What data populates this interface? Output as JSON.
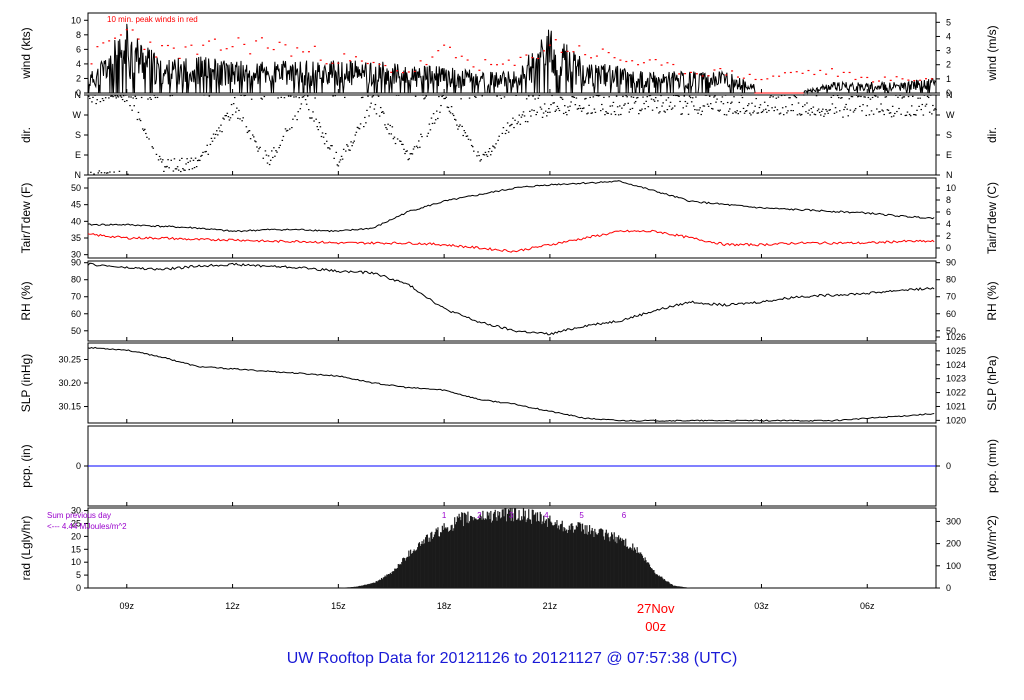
{
  "title": "UW Rooftop Data for 20121126  to  20121127 @ 07:57:38  (UTC)",
  "colors": {
    "frame": "#000000",
    "series": "#000000",
    "dewpoint": "#ff0000",
    "peak": "#ff0000",
    "precip": "#0000ff",
    "title": "#1a1ad6",
    "sum_note": "#9900cc",
    "date_label": "#ff0000"
  },
  "x_axis": {
    "tick_labels": [
      "09z",
      "12z",
      "15z",
      "18z",
      "21z",
      "03z",
      "06z"
    ],
    "tick_hours": [
      9,
      12,
      15,
      18,
      21,
      27,
      30
    ],
    "date_label": "27Nov",
    "date_sub_label": "00z",
    "date_hour": 24,
    "range_hours": [
      7.9,
      31.95
    ]
  },
  "panels": {
    "wind": {
      "left_label": "wind (kts)",
      "right_label": "wind (m/s)",
      "left_ticks": [
        "10",
        "8",
        "6",
        "4",
        "2",
        "0"
      ],
      "right_ticks": [
        "5",
        "4",
        "3",
        "2",
        "1",
        "0"
      ],
      "note": "10 min. peak winds in red"
    },
    "dir": {
      "left_label": "dir.",
      "right_label": "dir.",
      "ticks": [
        "N",
        "W",
        "S",
        "E",
        "N"
      ]
    },
    "temp": {
      "left_label": "Tair/Tdew (F)",
      "right_label": "Tair/Tdew (C)",
      "left_ticks": [
        "50",
        "45",
        "40",
        "35",
        "30"
      ],
      "right_ticks": [
        "10",
        "8",
        "6",
        "4",
        "2",
        "0"
      ]
    },
    "rh": {
      "left_label": "RH (%)",
      "right_label": "RH (%)",
      "ticks": [
        "90",
        "80",
        "70",
        "60",
        "50"
      ]
    },
    "slp": {
      "left_label": "SLP (inHg)",
      "right_label": "SLP (hPa)",
      "left_ticks": [
        "30.25",
        "30.20",
        "30.15"
      ],
      "right_ticks": [
        "1026",
        "1025",
        "1024",
        "1023",
        "1022",
        "1021",
        "1020"
      ]
    },
    "pcp": {
      "left_label": "pcp. (in)",
      "right_label": "pcp. (mm)",
      "left_ticks": [
        "0"
      ],
      "right_ticks": [
        "0"
      ]
    },
    "rad": {
      "left_label": "rad (Lgly/hr)",
      "right_label": "rad (W/m^2)",
      "left_ticks": [
        "30",
        "25",
        "20",
        "15",
        "10",
        "5",
        "0"
      ],
      "right_ticks": [
        "300",
        "200",
        "100",
        "0"
      ],
      "sum_line1": "Sum previous day",
      "sum_line2": "<--- 4.44 MJoules/m^2",
      "hour_marks": [
        "1",
        "2",
        "3",
        "4",
        "5",
        "6"
      ]
    }
  },
  "chart_data": [
    {
      "type": "line",
      "panel": "wind",
      "ylabel": "wind (kts)",
      "ylim": [
        0,
        11
      ],
      "x": [
        8,
        9,
        10,
        11,
        12,
        13,
        14,
        15,
        16,
        17,
        18,
        19,
        20,
        21,
        22,
        23,
        24,
        25,
        26,
        27,
        28,
        29,
        30,
        31,
        31.9
      ],
      "series": [
        {
          "values": [
            2,
            6.5,
            3,
            3.5,
            3,
            3,
            3,
            3,
            3,
            2.5,
            2.5,
            2,
            2,
            6,
            3,
            2.5,
            2,
            2,
            2,
            0.5,
            0,
            1,
            1,
            1,
            1.5
          ]
        },
        {
          "values": [
            5,
            9,
            6,
            6,
            7,
            7,
            6,
            5,
            4,
            3,
            6,
            4,
            4,
            7,
            6,
            5,
            4,
            3,
            3,
            2,
            3,
            3,
            2,
            2,
            2
          ]
        }
      ]
    },
    {
      "type": "scatter",
      "panel": "dir",
      "ylabel": "dir.",
      "ticks": [
        "N",
        "W",
        "S",
        "E",
        "N"
      ],
      "x": [
        8,
        9,
        10,
        11,
        12,
        13,
        14,
        15,
        16,
        17,
        18,
        19,
        20,
        21,
        22,
        23,
        24,
        25,
        26,
        27,
        28,
        29,
        30,
        31,
        31.9
      ],
      "series": [
        {
          "values": [
            350,
            350,
            40,
            50,
            300,
            60,
            330,
            60,
            320,
            70,
            330,
            60,
            250,
            300,
            300,
            300,
            310,
            300,
            300,
            300,
            300,
            290,
            290,
            290,
            300
          ]
        }
      ]
    },
    {
      "type": "line",
      "panel": "temp",
      "ylabel": "Tair/Tdew (F)",
      "ylim": [
        29,
        53
      ],
      "x": [
        8,
        9,
        10,
        11,
        12,
        13,
        14,
        15,
        16,
        17,
        18,
        19,
        20,
        21,
        22,
        23,
        24,
        25,
        26,
        27,
        28,
        29,
        30,
        31,
        31.9
      ],
      "series": [
        {
          "values": [
            39,
            39,
            38.5,
            38,
            37,
            37.5,
            37.5,
            37,
            38,
            43,
            46,
            48,
            50,
            51,
            51.5,
            52,
            49,
            46,
            45,
            44,
            43.5,
            43,
            42.5,
            41.5,
            41
          ]
        },
        {
          "values": [
            36,
            35,
            35,
            34.5,
            34.5,
            34,
            34,
            33.5,
            33.5,
            33.5,
            33,
            32,
            31,
            33,
            35,
            37,
            37,
            35,
            33,
            33,
            33.5,
            33.5,
            33.5,
            34,
            34
          ]
        }
      ]
    },
    {
      "type": "line",
      "panel": "rh",
      "ylabel": "RH (%)",
      "ylim": [
        44,
        91
      ],
      "x": [
        8,
        9,
        10,
        11,
        12,
        13,
        14,
        15,
        16,
        17,
        18,
        19,
        20,
        21,
        22,
        23,
        24,
        25,
        26,
        27,
        28,
        29,
        30,
        31,
        31.9
      ],
      "series": [
        {
          "values": [
            89,
            87,
            86,
            88,
            89,
            88,
            87,
            85,
            84,
            77,
            63,
            55,
            50,
            48,
            53,
            56,
            62,
            67,
            65,
            67,
            70,
            71,
            72,
            74,
            75
          ]
        }
      ]
    },
    {
      "type": "line",
      "panel": "slp",
      "ylabel": "SLP (inHg)",
      "ylim": [
        30.115,
        30.285
      ],
      "x": [
        8,
        9,
        10,
        11,
        12,
        13,
        14,
        15,
        16,
        17,
        18,
        19,
        20,
        21,
        22,
        23,
        24,
        25,
        26,
        27,
        28,
        29,
        30,
        31,
        31.9
      ],
      "series": [
        {
          "values": [
            30.275,
            30.27,
            30.255,
            30.235,
            30.23,
            30.225,
            30.22,
            30.215,
            30.2,
            30.19,
            30.185,
            30.165,
            30.155,
            30.14,
            30.125,
            30.12,
            30.12,
            30.12,
            30.12,
            30.12,
            30.12,
            30.12,
            30.125,
            30.13,
            30.135
          ]
        }
      ]
    },
    {
      "type": "line",
      "panel": "pcp",
      "ylabel": "pcp. (in)",
      "ylim": [
        -1,
        1
      ],
      "x": [
        7.9,
        31.95
      ],
      "series": [
        {
          "values": [
            0,
            0
          ]
        }
      ]
    },
    {
      "type": "area",
      "panel": "rad",
      "ylabel": "rad (Lgly/hr)",
      "ylim": [
        0,
        31
      ],
      "x": [
        15,
        15.5,
        16,
        16.5,
        17,
        17.5,
        18,
        18.5,
        19,
        19.5,
        20,
        20.5,
        21,
        21.5,
        22,
        22.5,
        23,
        23.5,
        24,
        24.5,
        25
      ],
      "series": [
        {
          "values": [
            0,
            0.5,
            2,
            6,
            14,
            20,
            24,
            28,
            29,
            30,
            30,
            29,
            27,
            25,
            24,
            22,
            20,
            15,
            6,
            1,
            0
          ]
        }
      ]
    }
  ]
}
